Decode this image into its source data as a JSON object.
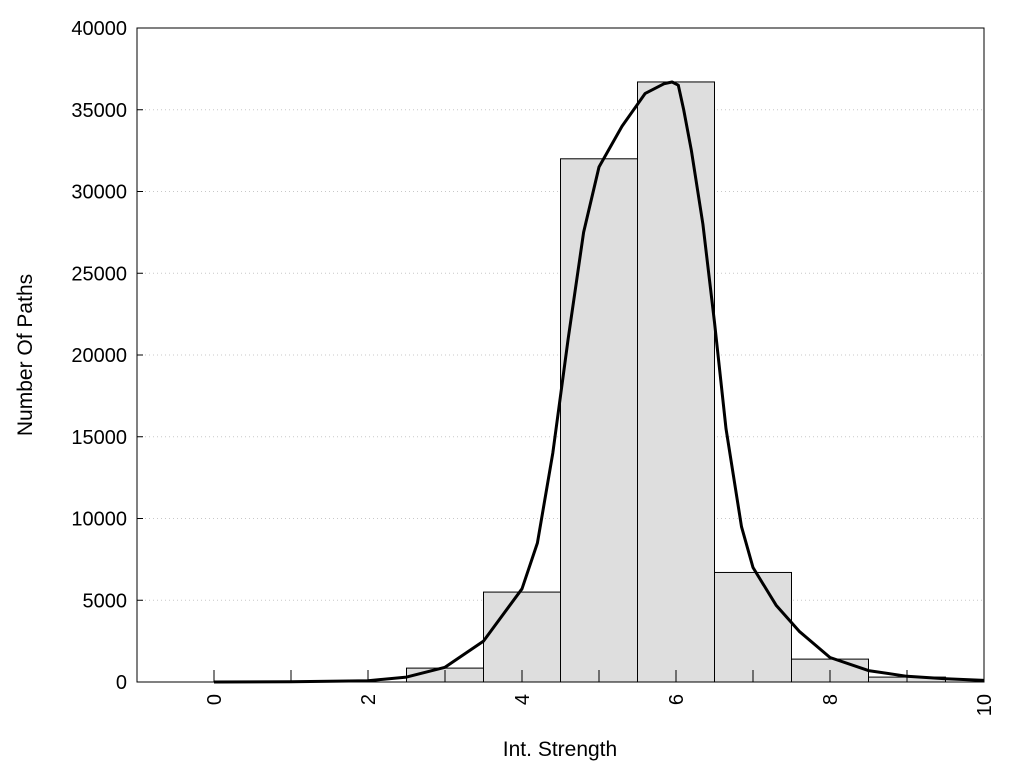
{
  "chart_data": {
    "type": "bar",
    "title": "",
    "xlabel": "Int. Strength",
    "ylabel": "Number Of Paths",
    "xlim": [
      -1,
      10
    ],
    "ylim": [
      0,
      40000
    ],
    "grid": "horizontal dotted",
    "x_ticks": [
      0,
      2,
      4,
      6,
      8,
      10
    ],
    "x_tick_labels": [
      "0",
      "2",
      "4",
      "6",
      "8",
      "10"
    ],
    "x_minor_ticks": [
      0,
      1,
      2,
      3,
      4,
      5,
      6,
      7,
      8,
      9,
      10
    ],
    "y_ticks": [
      0,
      5000,
      10000,
      15000,
      20000,
      25000,
      30000,
      35000,
      40000
    ],
    "y_tick_labels": [
      "0",
      "5000",
      "10000",
      "15000",
      "20000",
      "25000",
      "30000",
      "35000",
      "40000"
    ],
    "bar_width": 1,
    "bars": {
      "x": [
        3,
        4,
        5,
        6,
        7,
        8,
        9
      ],
      "values": [
        850,
        5500,
        32000,
        36700,
        6700,
        1400,
        300
      ]
    },
    "fit_curve": {
      "x": [
        0,
        1,
        2,
        2.5,
        3,
        3.5,
        4,
        4.2,
        4.4,
        4.6,
        4.8,
        5,
        5.3,
        5.6,
        5.85,
        5.95,
        6.03,
        6.1,
        6.2,
        6.35,
        6.5,
        6.65,
        6.85,
        7,
        7.3,
        7.6,
        8,
        8.5,
        9,
        9.5,
        10
      ],
      "values": [
        0,
        10,
        80,
        300,
        900,
        2500,
        5700,
        8500,
        14000,
        21000,
        27500,
        31500,
        34000,
        36000,
        36600,
        36700,
        36500,
        35000,
        32500,
        28000,
        22000,
        15500,
        9500,
        7000,
        4700,
        3100,
        1500,
        700,
        350,
        200,
        100
      ]
    },
    "colors": {
      "bar_fill": "#dedede",
      "bar_edge": "#000000",
      "curve": "#000000",
      "grid": "#c8c8c8"
    }
  }
}
